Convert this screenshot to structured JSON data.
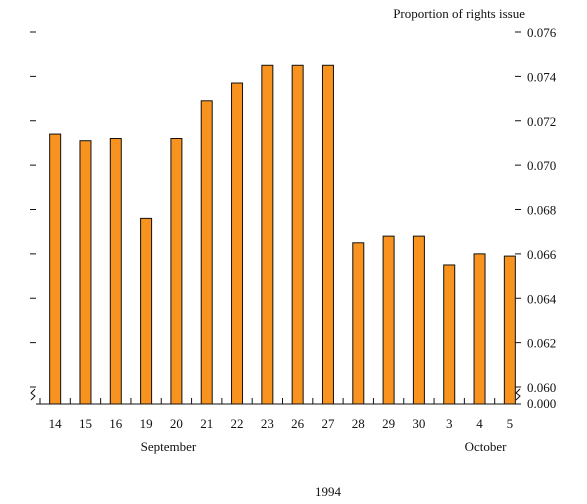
{
  "chart_data": {
    "type": "bar",
    "title": "",
    "ylabel": "Proportion of rights issue",
    "xlabel": "1994",
    "ylim": [
      0.06,
      0.076
    ],
    "y_axis_break": {
      "below": 0.06,
      "baseline_label": "0.000"
    },
    "y_ticks": [
      "0.060",
      "0.062",
      "0.064",
      "0.066",
      "0.068",
      "0.070",
      "0.072",
      "0.074",
      "0.076"
    ],
    "categories": [
      "14",
      "15",
      "16",
      "19",
      "20",
      "21",
      "22",
      "23",
      "26",
      "27",
      "28",
      "29",
      "30",
      "3",
      "4",
      "5"
    ],
    "values": [
      0.0714,
      0.0711,
      0.0712,
      0.0676,
      0.0712,
      0.0729,
      0.0737,
      0.0745,
      0.0745,
      0.0745,
      0.0665,
      0.0668,
      0.0668,
      0.0655,
      0.066,
      0.0659
    ],
    "months": [
      {
        "label": "September",
        "first": 0,
        "last": 12
      },
      {
        "label": "October",
        "first": 13,
        "last": 15
      }
    ],
    "bar_color": "#f7931e",
    "grid": false
  }
}
